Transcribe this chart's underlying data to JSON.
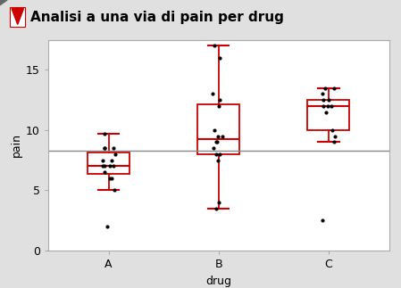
{
  "title": "Analisi a una via di pain per drug",
  "xlabel": "drug",
  "ylabel": "pain",
  "categories": [
    "A",
    "B",
    "C"
  ],
  "reference_line": 8.3,
  "data_A": [
    2.0,
    5.0,
    6.0,
    6.0,
    6.5,
    7.0,
    7.0,
    7.0,
    7.0,
    7.5,
    7.5,
    8.0,
    8.5,
    8.5,
    8.5,
    9.7
  ],
  "data_B": [
    3.5,
    4.0,
    7.5,
    8.0,
    8.0,
    8.5,
    9.0,
    9.0,
    9.5,
    9.5,
    10.0,
    12.0,
    12.5,
    13.0,
    16.0,
    17.0
  ],
  "data_C": [
    2.5,
    9.0,
    9.5,
    10.0,
    11.5,
    12.0,
    12.0,
    12.0,
    12.5,
    12.5,
    13.0,
    13.5,
    13.5
  ],
  "box_color": "#cc0000",
  "median_color": "#cc0000",
  "whisker_color": "#cc0000",
  "cap_color": "#cc0000",
  "flier_color": "black",
  "ref_line_color": "#888888",
  "plot_bg": "white",
  "outer_bg": "#e0e0e0",
  "title_bg": "#e0e0e0",
  "ylim": [
    0,
    17.5
  ],
  "yticks": [
    0,
    5,
    10,
    15
  ],
  "title_fontsize": 11,
  "axis_fontsize": 9,
  "tick_fontsize": 9
}
